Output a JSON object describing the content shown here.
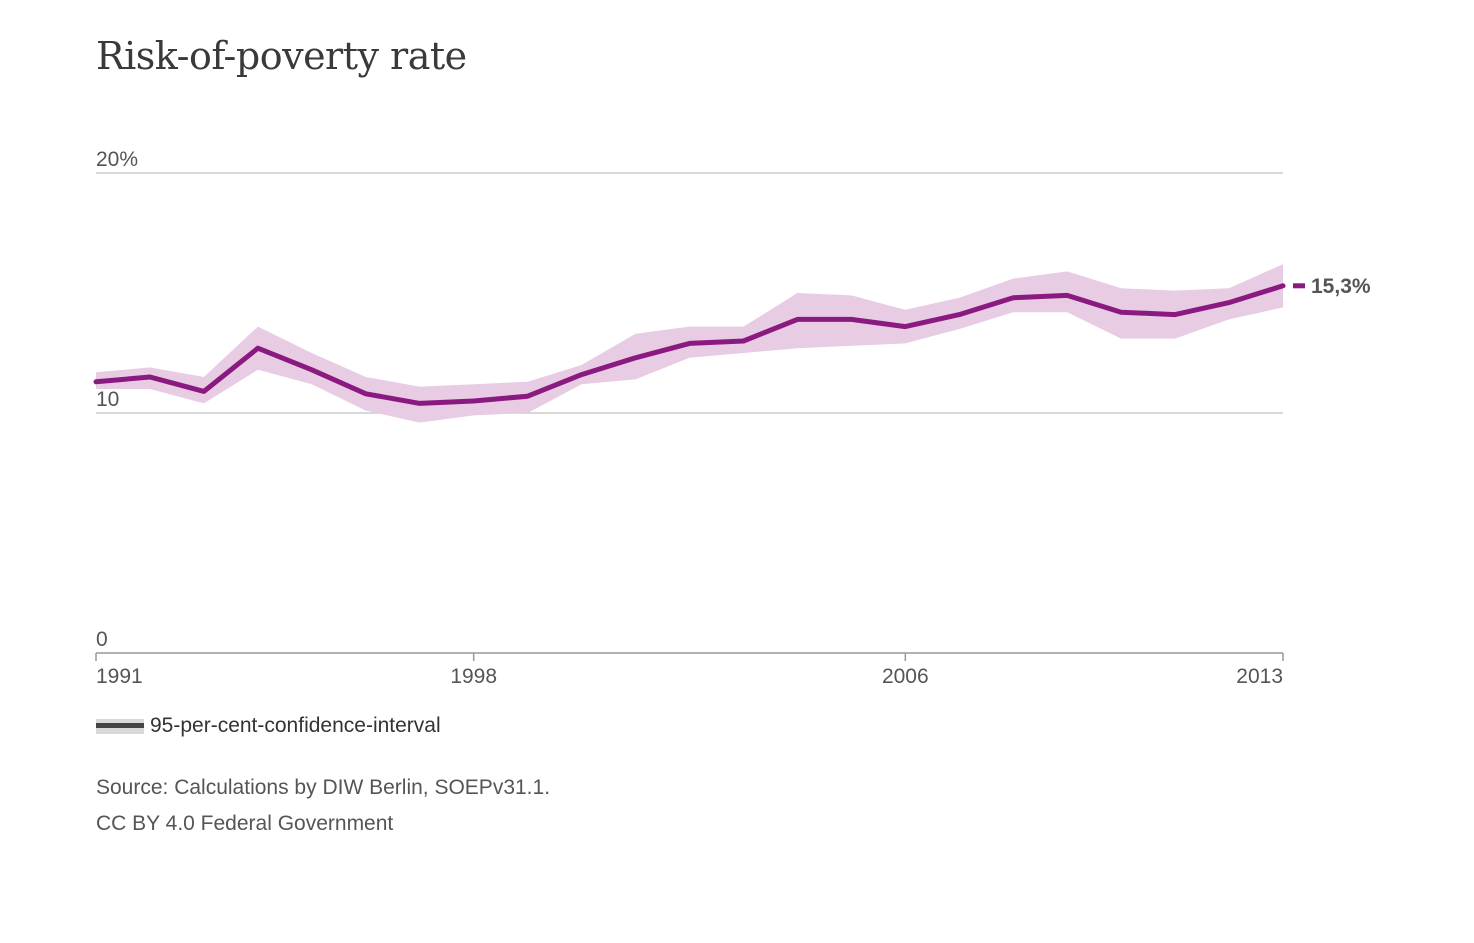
{
  "title": "Risk-of-poverty rate",
  "colors": {
    "line": "#8b1a80",
    "band": "#e7cce4",
    "grid": "#cccccc",
    "axis": "#999999",
    "text": "#555555"
  },
  "chart_data": {
    "type": "line",
    "title": "Risk-of-poverty rate",
    "xlabel": "",
    "ylabel": "",
    "x_range": [
      1991,
      2013
    ],
    "ylim": [
      0,
      20
    ],
    "x_ticks": [
      {
        "value": 1991,
        "label": "1991"
      },
      {
        "value": 1998,
        "label": "1998"
      },
      {
        "value": 2006,
        "label": "2006"
      },
      {
        "value": 2013,
        "label": "2013"
      }
    ],
    "y_ticks": [
      {
        "value": 20,
        "label": "20%"
      },
      {
        "value": 10,
        "label": "10"
      },
      {
        "value": 0,
        "label": "0"
      }
    ],
    "grid": true,
    "end_label": "15,3%",
    "series": [
      {
        "x": [
          1991,
          1992,
          1993,
          1994,
          1995,
          1996,
          1997,
          1998,
          1999,
          2000,
          2001,
          2002,
          2003,
          2004,
          2005,
          2006,
          2007,
          2008,
          2009,
          2010,
          2011,
          2012,
          2013
        ],
        "values": [
          11.3,
          11.5,
          10.9,
          12.7,
          11.8,
          10.8,
          10.4,
          10.5,
          10.7,
          11.6,
          12.3,
          12.9,
          13.0,
          13.9,
          13.9,
          13.6,
          14.1,
          14.8,
          14.9,
          14.2,
          14.1,
          14.6,
          15.3
        ]
      }
    ],
    "confidence_interval": {
      "name": "95-per-cent-confidence-interval",
      "lower": [
        11.0,
        11.0,
        10.4,
        11.8,
        11.2,
        10.1,
        9.6,
        9.9,
        10.0,
        11.2,
        11.4,
        12.3,
        12.5,
        12.7,
        12.8,
        12.9,
        13.5,
        14.2,
        14.2,
        13.1,
        13.1,
        13.9,
        14.4
      ],
      "upper": [
        11.7,
        11.9,
        11.5,
        13.6,
        12.5,
        11.5,
        11.1,
        11.2,
        11.3,
        12.0,
        13.3,
        13.6,
        13.6,
        15.0,
        14.9,
        14.3,
        14.8,
        15.6,
        15.9,
        15.2,
        15.1,
        15.2,
        16.2
      ]
    }
  },
  "legend": {
    "label": "95-per-cent-confidence-interval"
  },
  "source": {
    "line1": "Source: Calculations by DIW Berlin, SOEPv31.1.",
    "line2": "CC BY 4.0 Federal Government"
  }
}
